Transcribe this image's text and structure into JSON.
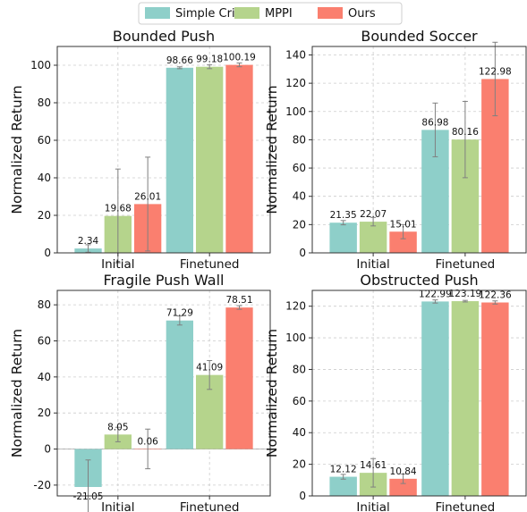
{
  "legend": {
    "entries": [
      {
        "name": "Simple Critic",
        "color": "#8ECFC9"
      },
      {
        "name": "MPPI",
        "color": "#B5D48C"
      },
      {
        "name": "Ours",
        "color": "#FA7F6F"
      }
    ]
  },
  "chart_data": [
    {
      "type": "bar",
      "title": "Bounded Push",
      "ylabel": "Normalized Return",
      "categories": [
        "Initial",
        "Finetuned"
      ],
      "ylim": [
        0,
        110
      ],
      "yticks": [
        0,
        20,
        40,
        60,
        80,
        100
      ],
      "grid": true,
      "series": [
        {
          "name": "Simple Critic",
          "values": [
            2.34,
            98.66
          ],
          "errors": [
            2,
            0.5
          ],
          "labels": [
            "2.34",
            "98.66"
          ]
        },
        {
          "name": "MPPI",
          "values": [
            19.68,
            99.18
          ],
          "errors": [
            25,
            1
          ],
          "labels": [
            "19.68",
            "99.18"
          ]
        },
        {
          "name": "Ours",
          "values": [
            26.01,
            100.19
          ],
          "errors": [
            25,
            1
          ],
          "labels": [
            "26.01",
            "100.19"
          ]
        }
      ]
    },
    {
      "type": "bar",
      "title": "Bounded Soccer",
      "ylabel": "Normalized Return",
      "categories": [
        "Initial",
        "Finetuned"
      ],
      "ylim": [
        0,
        146
      ],
      "yticks": [
        0,
        20,
        40,
        60,
        80,
        100,
        120,
        140
      ],
      "grid": true,
      "series": [
        {
          "name": "Simple Critic",
          "values": [
            21.35,
            86.98
          ],
          "errors": [
            1.5,
            19
          ],
          "labels": [
            "21.35",
            "86.98"
          ]
        },
        {
          "name": "MPPI",
          "values": [
            22.07,
            80.16
          ],
          "errors": [
            3,
            27
          ],
          "labels": [
            "22.07",
            "80.16"
          ]
        },
        {
          "name": "Ours",
          "values": [
            15.01,
            122.98
          ],
          "errors": [
            5,
            26
          ],
          "labels": [
            "15.01",
            "122.98"
          ]
        }
      ]
    },
    {
      "type": "bar",
      "title": "Fragile Push Wall",
      "ylabel": "Normalized Return",
      "categories": [
        "Initial",
        "Finetuned"
      ],
      "ylim": [
        -26,
        88
      ],
      "yticks": [
        -20,
        0,
        20,
        40,
        60,
        80
      ],
      "grid": true,
      "series": [
        {
          "name": "Simple Critic",
          "values": [
            -21.05,
            71.29
          ],
          "errors": [
            15,
            2.5
          ],
          "labels": [
            "-21.05",
            "71.29"
          ]
        },
        {
          "name": "MPPI",
          "values": [
            8.05,
            41.09
          ],
          "errors": [
            4,
            8
          ],
          "labels": [
            "8.05",
            "41.09"
          ]
        },
        {
          "name": "Ours",
          "values": [
            0.06,
            78.51
          ],
          "errors": [
            11,
            1
          ],
          "labels": [
            "0.06",
            "78.51"
          ]
        }
      ]
    },
    {
      "type": "bar",
      "title": "Obstructed Push",
      "ylabel": "Normalized Return",
      "categories": [
        "Initial",
        "Finetuned"
      ],
      "ylim": [
        0,
        130
      ],
      "yticks": [
        0,
        20,
        40,
        60,
        80,
        100,
        120
      ],
      "grid": true,
      "series": [
        {
          "name": "Simple Critic",
          "values": [
            12.12,
            122.99
          ],
          "errors": [
            1.5,
            1
          ],
          "labels": [
            "12.12",
            "122.99"
          ]
        },
        {
          "name": "MPPI",
          "values": [
            14.61,
            123.19
          ],
          "errors": [
            9,
            0.5
          ],
          "labels": [
            "14.61",
            "123.19"
          ]
        },
        {
          "name": "Ours",
          "values": [
            10.84,
            122.36
          ],
          "errors": [
            3,
            1
          ],
          "labels": [
            "10.84",
            "122.36"
          ]
        }
      ]
    }
  ]
}
